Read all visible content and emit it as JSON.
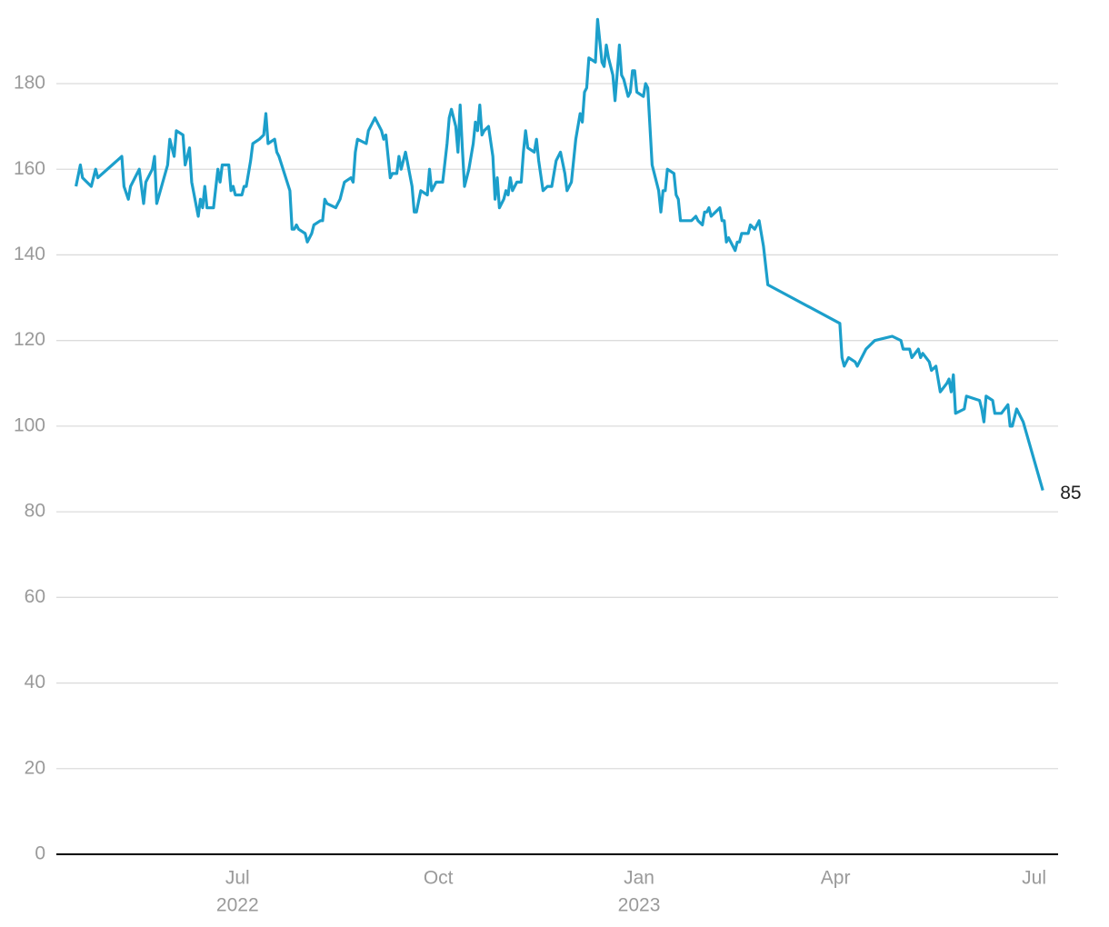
{
  "chart_data": {
    "type": "line",
    "color": "#1c9fcb",
    "x": [
      "2022-04-18",
      "2022-04-20",
      "2022-04-21",
      "2022-04-25",
      "2022-04-27",
      "2022-04-28",
      "2022-05-09",
      "2022-05-10",
      "2022-05-12",
      "2022-05-13",
      "2022-05-17",
      "2022-05-19",
      "2022-05-20",
      "2022-05-23",
      "2022-05-24",
      "2022-05-25",
      "2022-05-30",
      "2022-05-31",
      "2022-06-02",
      "2022-06-03",
      "2022-06-06",
      "2022-06-07",
      "2022-06-09",
      "2022-06-10",
      "2022-06-13",
      "2022-06-14",
      "2022-06-15",
      "2022-06-16",
      "2022-06-17",
      "2022-06-20",
      "2022-06-22",
      "2022-06-23",
      "2022-06-24",
      "2022-06-27",
      "2022-06-28",
      "2022-06-29",
      "2022-06-30",
      "2022-07-03",
      "2022-07-04",
      "2022-07-05",
      "2022-07-07",
      "2022-07-08",
      "2022-07-11",
      "2022-07-13",
      "2022-07-14",
      "2022-07-15",
      "2022-07-18",
      "2022-07-19",
      "2022-07-20",
      "2022-07-25",
      "2022-07-26",
      "2022-07-27",
      "2022-07-28",
      "2022-07-29",
      "2022-08-01",
      "2022-08-02",
      "2022-08-04",
      "2022-08-05",
      "2022-08-08",
      "2022-08-09",
      "2022-08-10",
      "2022-08-11",
      "2022-08-15",
      "2022-08-16",
      "2022-08-17",
      "2022-08-19",
      "2022-08-22",
      "2022-08-23",
      "2022-08-24",
      "2022-08-25",
      "2022-08-29",
      "2022-08-30",
      "2022-09-02",
      "2022-09-05",
      "2022-09-06",
      "2022-09-07",
      "2022-09-09",
      "2022-09-10",
      "2022-09-12",
      "2022-09-13",
      "2022-09-14",
      "2022-09-16",
      "2022-09-19",
      "2022-09-20",
      "2022-09-21",
      "2022-09-23",
      "2022-09-26",
      "2022-09-27",
      "2022-09-28",
      "2022-09-30",
      "2022-10-03",
      "2022-10-05",
      "2022-10-06",
      "2022-10-07",
      "2022-10-09",
      "2022-10-10",
      "2022-10-11",
      "2022-10-12",
      "2022-10-13",
      "2022-10-15",
      "2022-10-17",
      "2022-10-18",
      "2022-10-19",
      "2022-10-20",
      "2022-10-21",
      "2022-10-22",
      "2022-10-24",
      "2022-10-26",
      "2022-10-27",
      "2022-10-28",
      "2022-10-29",
      "2022-10-31",
      "2022-11-01",
      "2022-11-02",
      "2022-11-03",
      "2022-11-04",
      "2022-11-06",
      "2022-11-08",
      "2022-11-09",
      "2022-11-10",
      "2022-11-11",
      "2022-11-14",
      "2022-11-15",
      "2022-11-16",
      "2022-11-18",
      "2022-11-20",
      "2022-11-22",
      "2022-11-24",
      "2022-11-26",
      "2022-11-28",
      "2022-11-29",
      "2022-12-01",
      "2022-12-03",
      "2022-12-05",
      "2022-12-06",
      "2022-12-07",
      "2022-12-08",
      "2022-12-09",
      "2022-12-12",
      "2022-12-13",
      "2022-12-15",
      "2022-12-16",
      "2022-12-17",
      "2022-12-18",
      "2022-12-20",
      "2022-12-21",
      "2022-12-23",
      "2022-12-24",
      "2022-12-25",
      "2022-12-27",
      "2022-12-28",
      "2022-12-29",
      "2022-12-30",
      "2022-12-31",
      "2023-01-03",
      "2023-01-04",
      "2023-01-05",
      "2023-01-07",
      "2023-01-10",
      "2023-01-11",
      "2023-01-12",
      "2023-01-13",
      "2023-01-14",
      "2023-01-17",
      "2023-01-18",
      "2023-01-19",
      "2023-01-20",
      "2023-01-25",
      "2023-01-27",
      "2023-01-28",
      "2023-01-30",
      "2023-01-31",
      "2023-02-01",
      "2023-02-02",
      "2023-02-03",
      "2023-02-05",
      "2023-02-07",
      "2023-02-08",
      "2023-02-09",
      "2023-02-10",
      "2023-02-11",
      "2023-02-14",
      "2023-02-15",
      "2023-02-16",
      "2023-02-17",
      "2023-02-20",
      "2023-02-21",
      "2023-02-23",
      "2023-02-25",
      "2023-02-27",
      "2023-03-01",
      "2023-04-03",
      "2023-04-04",
      "2023-04-05",
      "2023-04-07",
      "2023-04-10",
      "2023-04-11",
      "2023-04-12",
      "2023-04-15",
      "2023-04-17",
      "2023-04-19",
      "2023-04-27",
      "2023-05-01",
      "2023-05-02",
      "2023-05-05",
      "2023-05-06",
      "2023-05-09",
      "2023-05-10",
      "2023-05-11",
      "2023-05-14",
      "2023-05-15",
      "2023-05-17",
      "2023-05-19",
      "2023-05-22",
      "2023-05-23",
      "2023-05-24",
      "2023-05-25",
      "2023-05-26",
      "2023-05-30",
      "2023-05-31",
      "2023-06-06",
      "2023-06-07",
      "2023-06-08",
      "2023-06-09",
      "2023-06-12",
      "2023-06-13",
      "2023-06-16",
      "2023-06-19",
      "2023-06-20",
      "2023-06-21",
      "2023-06-23",
      "2023-06-26",
      "2023-07-05"
    ],
    "values": [
      156,
      161,
      158,
      156,
      160,
      158,
      163,
      156,
      153,
      156,
      160,
      152,
      157,
      160,
      163,
      152,
      161,
      167,
      163,
      169,
      168,
      161,
      165,
      157,
      149,
      153,
      151,
      156,
      151,
      151,
      160,
      157,
      161,
      161,
      155,
      156,
      154,
      154,
      156,
      156,
      162,
      166,
      167,
      168,
      173,
      166,
      167,
      164,
      163,
      155,
      146,
      146,
      147,
      146,
      145,
      143,
      145,
      147,
      148,
      148,
      153,
      152,
      151,
      152,
      153,
      157,
      158,
      157,
      164,
      167,
      166,
      169,
      172,
      169,
      167,
      168,
      158,
      159,
      159,
      163,
      160,
      164,
      156,
      150,
      150,
      155,
      154,
      160,
      155,
      157,
      157,
      166,
      172,
      174,
      170,
      164,
      175,
      165,
      156,
      160,
      166,
      171,
      169,
      175,
      168,
      169,
      170,
      163,
      153,
      158,
      151,
      153,
      155,
      154,
      158,
      155,
      157,
      157,
      164,
      169,
      165,
      164,
      167,
      162,
      155,
      156,
      156,
      162,
      164,
      159,
      155,
      157,
      167,
      173,
      171,
      178,
      179,
      186,
      185,
      195,
      185,
      184,
      189,
      186,
      182,
      176,
      189,
      182,
      181,
      177,
      178,
      183,
      183,
      178,
      177,
      180,
      179,
      161,
      155,
      150,
      155,
      155,
      160,
      159,
      154,
      153,
      148,
      148,
      149,
      148,
      147,
      150,
      150,
      151,
      149,
      150,
      151,
      148,
      148,
      143,
      144,
      141,
      143,
      143,
      145,
      145,
      147,
      146,
      148,
      142,
      133,
      124,
      116,
      114,
      116,
      115,
      114,
      115,
      118,
      119,
      120,
      121,
      120,
      118,
      118,
      116,
      118,
      116,
      117,
      115,
      113,
      114,
      108,
      110,
      111,
      108,
      112,
      103,
      104,
      107,
      106,
      104,
      101,
      107,
      106,
      103,
      103,
      105,
      100,
      100,
      104,
      101,
      85
    ],
    "xlim": [
      "2022-04-09",
      "2023-07-12"
    ],
    "xticks": [
      {
        "value": "2022-07-01",
        "label": "Jul",
        "year": "2022"
      },
      {
        "value": "2022-10-01",
        "label": "Oct"
      },
      {
        "value": "2023-01-01",
        "label": "Jan",
        "year": "2023"
      },
      {
        "value": "2023-04-01",
        "label": "Apr"
      },
      {
        "value": "2023-07-01",
        "label": "Jul"
      }
    ],
    "ylim": [
      0,
      200
    ],
    "yticks": [
      0,
      20,
      40,
      60,
      80,
      100,
      120,
      140,
      160,
      180
    ],
    "grid": true
  }
}
